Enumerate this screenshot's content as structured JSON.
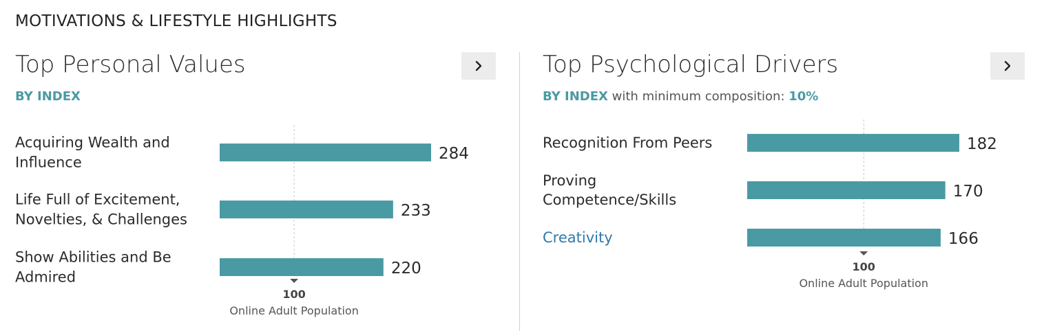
{
  "section_title": "MOTIVATIONS & LIFESTYLE HIGHLIGHTS",
  "colors": {
    "bar": "#4a9aa3",
    "accent": "#4a9aa3",
    "link": "#2f79ad",
    "divider": "#cfcfcf",
    "button_bg": "#ececec"
  },
  "left_panel": {
    "title": "Top Personal Values",
    "subtitle_accent": "BY INDEX",
    "nav_icon": "chevron-right-icon"
  },
  "right_panel": {
    "title": "Top Psychological Drivers",
    "subtitle_accent": "BY INDEX",
    "subtitle_text": "with minimum composition:",
    "subtitle_value": "10%",
    "nav_icon": "chevron-right-icon"
  },
  "chart_data": [
    {
      "type": "bar",
      "orientation": "horizontal",
      "categories": [
        [
          "Acquiring Wealth and",
          "Influence"
        ],
        [
          "Life Full of Excitement,",
          "Novelties, & Challenges"
        ],
        [
          "Show Abilities and Be",
          "Admired"
        ]
      ],
      "values": [
        284,
        233,
        220
      ],
      "data_labels": [
        "284",
        "233",
        "220"
      ],
      "reference_value": 100,
      "reference_tick_label": "100",
      "reference_label": "Online Adult Population",
      "xlim": [
        0,
        284
      ],
      "grid": false
    },
    {
      "type": "bar",
      "orientation": "horizontal",
      "categories": [
        [
          "Recognition From Peers"
        ],
        [
          "Proving",
          "Competence/Skills"
        ],
        [
          "Creativity"
        ]
      ],
      "linked_categories": [
        false,
        false,
        true
      ],
      "values": [
        182,
        170,
        166
      ],
      "data_labels": [
        "182",
        "170",
        "166"
      ],
      "reference_value": 100,
      "reference_tick_label": "100",
      "reference_label": "Online Adult Population",
      "xlim": [
        0,
        182
      ],
      "grid": false
    }
  ]
}
